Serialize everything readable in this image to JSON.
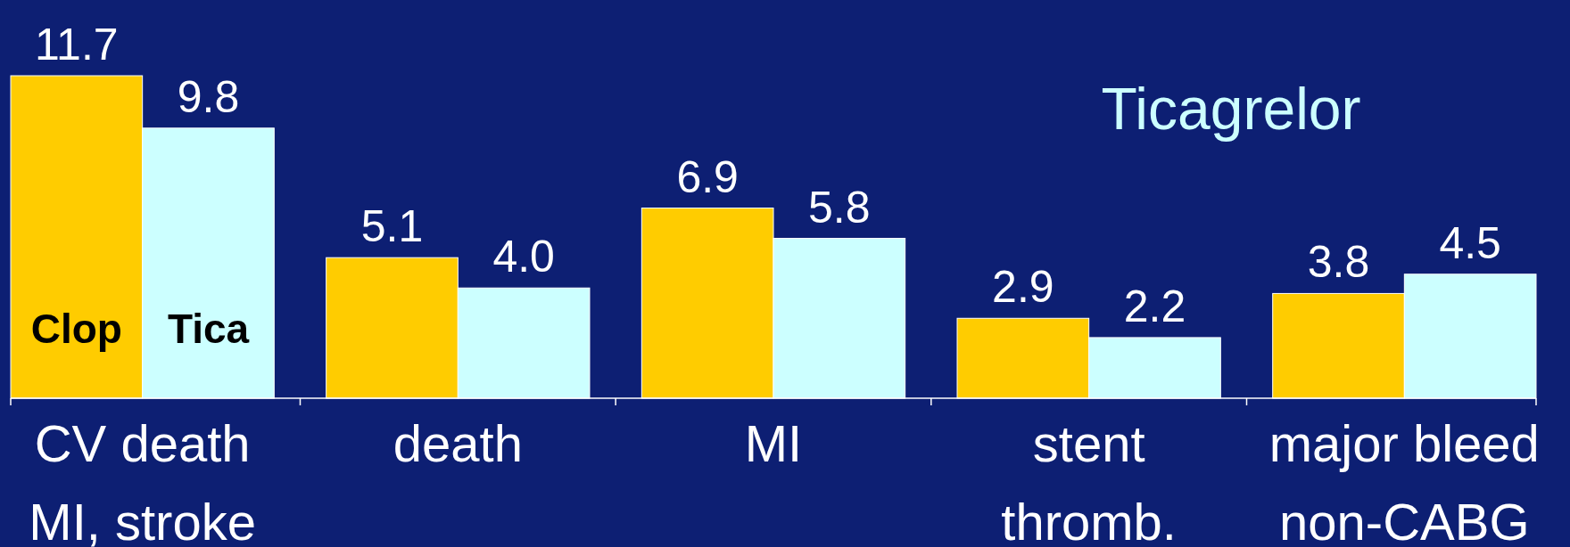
{
  "chart_data": {
    "type": "bar",
    "title": "Ticagrelor",
    "categories": [
      "CV death\nMI, stroke",
      "death",
      "MI",
      "stent\nthromb.",
      "major bleed\nnon-CABG"
    ],
    "series": [
      {
        "name": "Clop",
        "color": "#ffcc00",
        "values": [
          11.7,
          5.1,
          6.9,
          2.9,
          3.8
        ],
        "value_labels": [
          "11.7",
          "5.1",
          "6.9",
          "2.9",
          "3.8"
        ]
      },
      {
        "name": "Tica",
        "color": "#ccffff",
        "values": [
          9.8,
          4.0,
          5.8,
          2.2,
          4.5
        ],
        "value_labels": [
          "9.8",
          "4.0",
          "5.8",
          "2.2",
          "4.5"
        ]
      }
    ]
  }
}
